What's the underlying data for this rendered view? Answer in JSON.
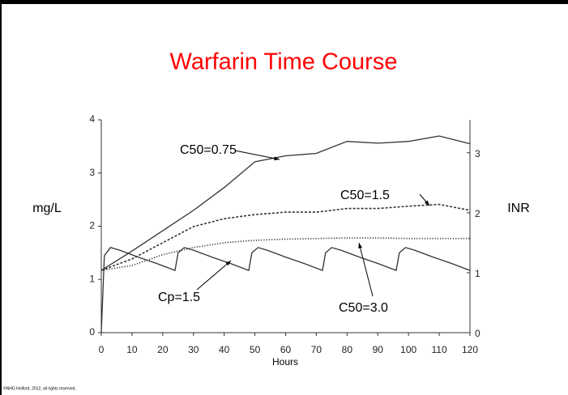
{
  "chart_data": {
    "type": "line",
    "title": "Warfarin Time Course",
    "title_color": "#ff0000",
    "x_label": "Hours",
    "y_label": "mg/L",
    "y2_label": "INR",
    "footer": "©NHG Holford, 2012, all rights reserved.",
    "xlim": [
      0,
      120
    ],
    "xticks": [
      0,
      10,
      20,
      30,
      40,
      50,
      60,
      70,
      80,
      90,
      100,
      110,
      120
    ],
    "ylim": [
      0,
      4
    ],
    "yticks": [
      0,
      1,
      2,
      3,
      4
    ],
    "y2lim": [
      0,
      3.55
    ],
    "y2ticks": [
      0,
      1,
      2,
      3
    ],
    "series": [
      {
        "name": "C50=0.75",
        "axis": "y2",
        "color": "#333333",
        "style": "solid",
        "x": [
          0,
          10,
          20,
          30,
          40,
          50,
          60,
          70,
          80,
          90,
          100,
          110,
          120
        ],
        "values": [
          1.04,
          1.36,
          1.7,
          2.04,
          2.42,
          2.85,
          2.95,
          2.99,
          3.19,
          3.16,
          3.19,
          3.28,
          3.15
        ]
      },
      {
        "name": "C50=1.5",
        "axis": "y2",
        "color": "#333333",
        "style": "dashed",
        "x": [
          0,
          10,
          20,
          30,
          40,
          50,
          60,
          70,
          80,
          90,
          100,
          110,
          120
        ],
        "values": [
          1.04,
          1.23,
          1.5,
          1.77,
          1.9,
          1.97,
          2.01,
          2.01,
          2.07,
          2.07,
          2.11,
          2.14,
          2.04
        ]
      },
      {
        "name": "C50=3.0",
        "axis": "y2",
        "color": "#333333",
        "style": "dotted",
        "x": [
          0,
          10,
          20,
          30,
          40,
          50,
          60,
          70,
          80,
          90,
          100,
          110,
          120
        ],
        "values": [
          1.04,
          1.12,
          1.3,
          1.42,
          1.5,
          1.54,
          1.56,
          1.57,
          1.58,
          1.58,
          1.57,
          1.57,
          1.57
        ]
      },
      {
        "name": "Cp=1.5",
        "axis": "y",
        "color": "#333333",
        "style": "solid",
        "x": [
          0,
          1,
          3,
          6,
          12,
          18,
          24,
          25,
          27,
          30,
          36,
          42,
          48,
          49,
          51,
          54,
          60,
          66,
          72,
          73,
          75,
          78,
          84,
          90,
          96,
          97,
          99,
          102,
          108,
          114,
          120
        ],
        "values": [
          0,
          1.45,
          1.6,
          1.55,
          1.42,
          1.3,
          1.17,
          1.5,
          1.6,
          1.55,
          1.42,
          1.3,
          1.17,
          1.5,
          1.6,
          1.55,
          1.42,
          1.3,
          1.17,
          1.5,
          1.6,
          1.55,
          1.42,
          1.3,
          1.17,
          1.5,
          1.6,
          1.55,
          1.42,
          1.3,
          1.17
        ]
      }
    ]
  }
}
